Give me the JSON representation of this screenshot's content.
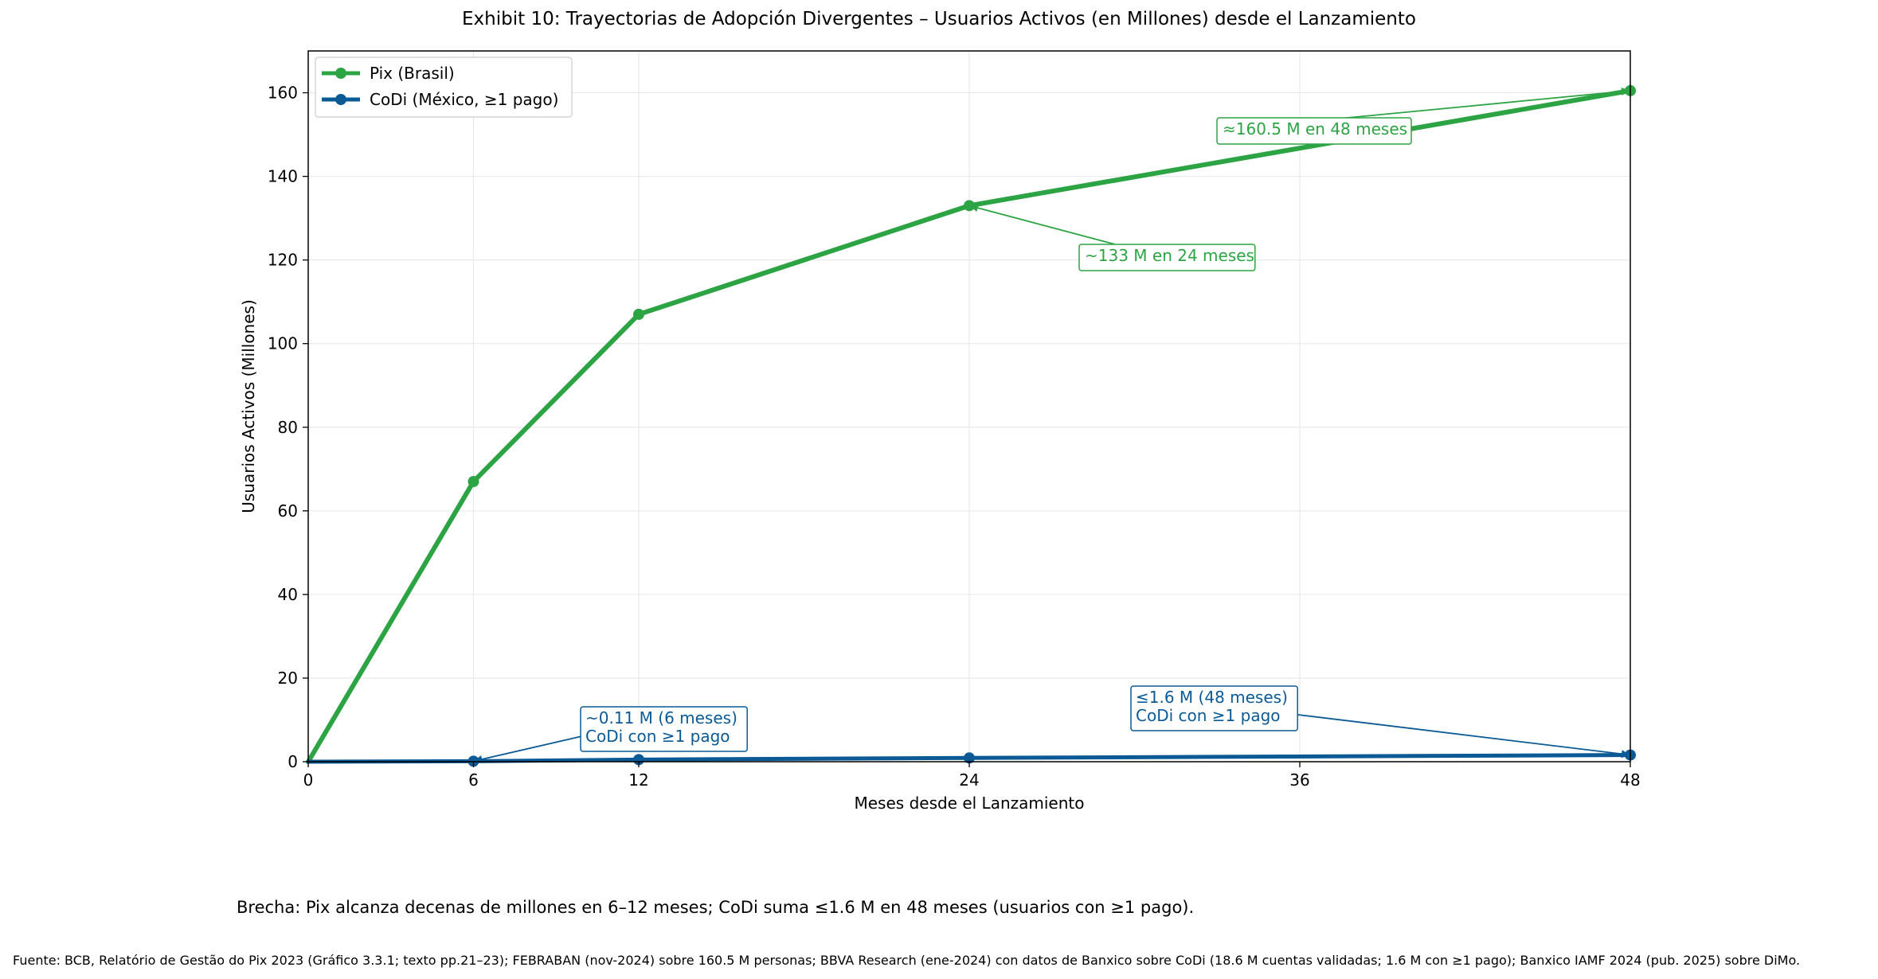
{
  "title": "Exhibit 10: Trayectorias de Adopción Divergentes – Usuarios Activos (en Millones) desde el Lanzamiento",
  "caption": "Brecha: Pix alcanza decenas de millones en 6–12 meses; CoDi suma ≤1.6 M en 48 meses (usuarios con ≥1 pago).",
  "source": "Fuente: BCB, Relatório de Gestão do Pix 2023 (Gráfico 3.3.1; texto pp.21–23); FEBRABAN (nov-2024) sobre 160.5 M personas; BBVA Research (ene-2024) con datos de Banxico sobre CoDi (18.6 M cuentas validadas; 1.6 M con ≥1 pago); Banxico IAMF 2024 (pub. 2025) sobre DiMo.",
  "colors": {
    "pix": "#2ca444",
    "codi": "#0b5a96"
  },
  "chart_data": {
    "type": "line",
    "xlabel": "Meses desde el Lanzamiento",
    "ylabel": "Usuarios Activos (Millones)",
    "xlim": [
      0,
      48
    ],
    "ylim": [
      0,
      170
    ],
    "xticks": [
      "0",
      "6",
      "12",
      "24",
      "36",
      "48"
    ],
    "yticks": [
      "0",
      "20",
      "40",
      "60",
      "80",
      "100",
      "120",
      "140",
      "160"
    ],
    "grid": true,
    "legend": "top-left",
    "series": [
      {
        "name": "Pix (Brasil)",
        "color": "#2ca444",
        "x": [
          0,
          6,
          12,
          24,
          48
        ],
        "y": [
          0,
          67,
          107,
          133,
          160.5
        ]
      },
      {
        "name": "CoDi (México, ≥1 pago)",
        "color": "#0b5a96",
        "x": [
          0,
          6,
          12,
          24,
          48
        ],
        "y": [
          0,
          0.11,
          0.5,
          0.9,
          1.6
        ]
      }
    ],
    "annotations": [
      {
        "lines": [
          "≈160.5 M en 48 meses"
        ],
        "point": [
          48,
          160.5
        ],
        "color": "#2ca444"
      },
      {
        "lines": [
          "~133 M en 24 meses"
        ],
        "point": [
          24,
          133
        ],
        "color": "#2ca444"
      },
      {
        "lines": [
          "~0.11 M (6 meses)",
          "CoDi con ≥1 pago"
        ],
        "point": [
          6,
          0.11
        ],
        "color": "#0b5a96"
      },
      {
        "lines": [
          "≤1.6 M (48 meses)",
          "CoDi con ≥1 pago"
        ],
        "point": [
          48,
          1.6
        ],
        "color": "#0b5a96"
      }
    ]
  }
}
